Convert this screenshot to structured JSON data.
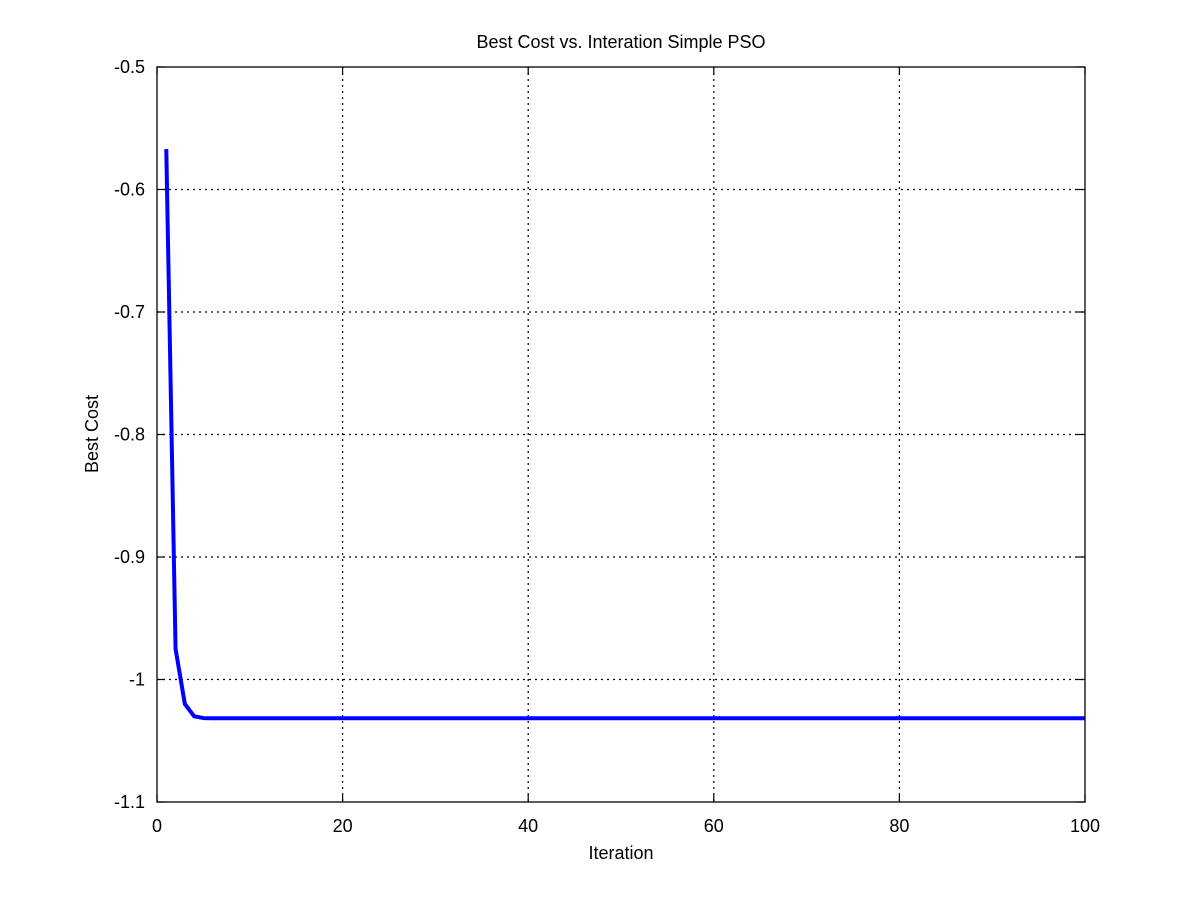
{
  "colors": {
    "series": "#0000ff",
    "grid": "#000000",
    "axes": "#000000",
    "background": "#ffffff"
  },
  "chart_data": {
    "type": "line",
    "title": "Best Cost vs. Interation Simple PSO",
    "xlabel": "Iteration",
    "ylabel": "Best Cost",
    "xlim": [
      0,
      100
    ],
    "ylim": [
      -1.1,
      -0.5
    ],
    "xticks": [
      0,
      20,
      40,
      60,
      80,
      100
    ],
    "xtick_labels": [
      "0",
      "20",
      "40",
      "60",
      "80",
      "100"
    ],
    "yticks": [
      -1.1,
      -1.0,
      -0.9,
      -0.8,
      -0.7,
      -0.6,
      -0.5
    ],
    "ytick_labels": [
      "-1.1",
      "-1",
      "-0.9",
      "-0.8",
      "-0.7",
      "-0.6",
      "-0.5"
    ],
    "grid": true,
    "grid_style": "dotted",
    "legend": false,
    "series": [
      {
        "color": "#0000ff",
        "x": [
          1,
          2,
          3,
          4,
          5,
          6,
          10,
          20,
          30,
          40,
          50,
          60,
          70,
          80,
          90,
          100
        ],
        "y": [
          -0.567,
          -0.975,
          -1.02,
          -1.03,
          -1.0315,
          -1.0316,
          -1.0316,
          -1.0316,
          -1.0316,
          -1.0316,
          -1.0316,
          -1.0316,
          -1.0316,
          -1.0316,
          -1.0316,
          -1.0316
        ]
      }
    ]
  }
}
